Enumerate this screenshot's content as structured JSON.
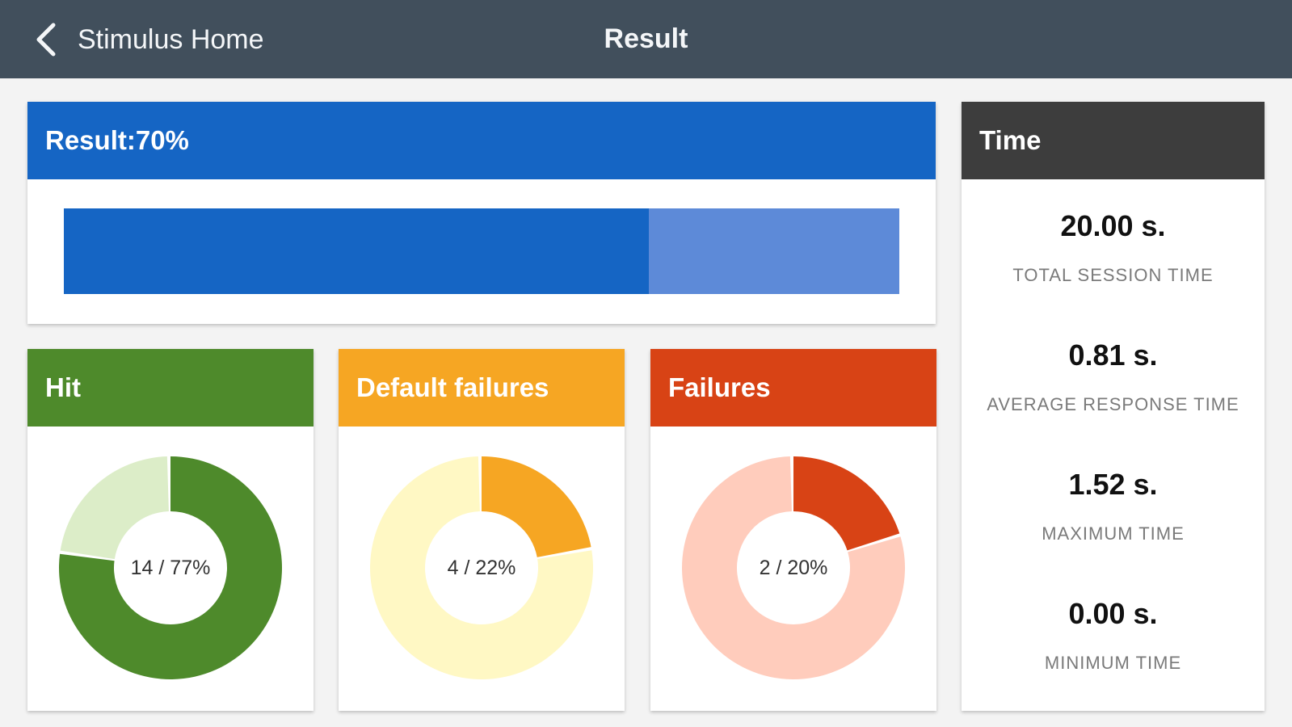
{
  "header": {
    "back_label": "Stimulus Home",
    "title": "Result",
    "background": "#414f5c"
  },
  "result": {
    "label": "Result:70%",
    "percent": 70,
    "color": "#1565c4",
    "track_color": "#5d8ad8"
  },
  "stats": [
    {
      "title": "Hit",
      "label": "14 / 77%",
      "percent": 77,
      "color": "#4e8a2b",
      "track_color": "#dcedc8"
    },
    {
      "title": "Default failures",
      "label": "4 / 22%",
      "percent": 22,
      "color": "#f6a623",
      "track_color": "#fff8c4"
    },
    {
      "title": "Failures",
      "label": "2 / 20%",
      "percent": 20,
      "color": "#d84315",
      "track_color": "#ffccbc"
    }
  ],
  "time": {
    "title": "Time",
    "rows": [
      {
        "value": "20.00 s.",
        "label": "TOTAL SESSION TIME"
      },
      {
        "value": "0.81 s.",
        "label": "AVERAGE RESPONSE TIME"
      },
      {
        "value": "1.52 s.",
        "label": "MAXIMUM TIME"
      },
      {
        "value": "0.00 s.",
        "label": "MINIMUM TIME"
      }
    ]
  },
  "icons": {
    "back": "chevron-left-icon"
  }
}
